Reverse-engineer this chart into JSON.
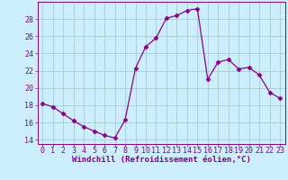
{
  "x": [
    0,
    1,
    2,
    3,
    4,
    5,
    6,
    7,
    8,
    9,
    10,
    11,
    12,
    13,
    14,
    15,
    16,
    17,
    18,
    19,
    20,
    21,
    22,
    23
  ],
  "y": [
    18.2,
    17.8,
    17.0,
    16.2,
    15.5,
    15.0,
    14.5,
    14.2,
    16.3,
    22.3,
    24.8,
    25.8,
    28.1,
    28.4,
    29.0,
    29.2,
    21.0,
    23.0,
    23.3,
    22.2,
    22.4,
    21.5,
    19.5,
    18.8
  ],
  "line_color": "#880088",
  "marker": "D",
  "marker_size": 2.5,
  "bg_color": "#cceeff",
  "grid_color": "#aacccc",
  "xlabel": "Windchill (Refroidissement éolien,°C)",
  "ylim": [
    13.5,
    30.0
  ],
  "xlim": [
    -0.5,
    23.5
  ],
  "yticks": [
    14,
    16,
    18,
    20,
    22,
    24,
    26,
    28
  ],
  "xticks": [
    0,
    1,
    2,
    3,
    4,
    5,
    6,
    7,
    8,
    9,
    10,
    11,
    12,
    13,
    14,
    15,
    16,
    17,
    18,
    19,
    20,
    21,
    22,
    23
  ],
  "tick_color": "#880088",
  "label_color": "#880088",
  "tick_fontsize": 6.0,
  "xlabel_fontsize": 6.5
}
